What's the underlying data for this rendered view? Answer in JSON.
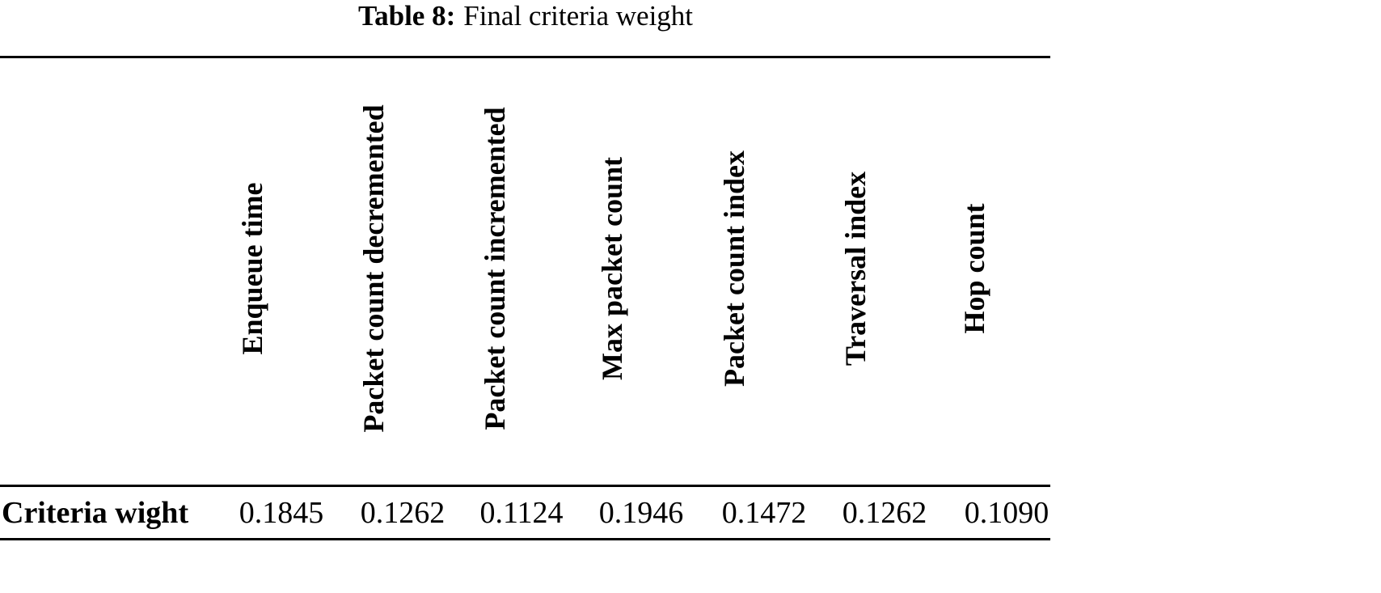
{
  "caption": {
    "label": "Table 8:",
    "text": "Final criteria weight"
  },
  "table": {
    "headers": [
      "Enqueue time",
      "Packet count decremented",
      "Packet count incremented",
      "Max packet count",
      "Packet count index",
      "Traversal index",
      "Hop count"
    ],
    "rows": [
      [
        "Criteria wight",
        "0.1845",
        "0.1262",
        "0.1124",
        "0.1946",
        "0.1472",
        "0.1262",
        "0.1090"
      ]
    ]
  }
}
